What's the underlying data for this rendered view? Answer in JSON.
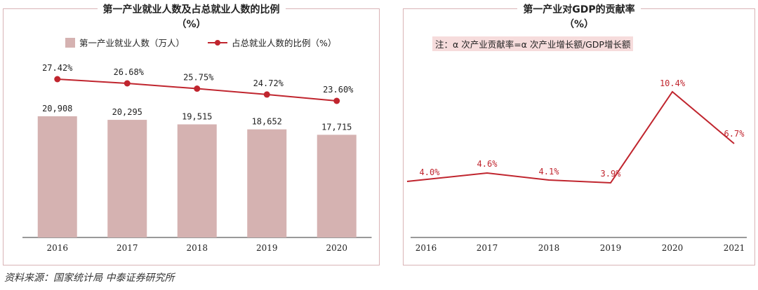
{
  "left_chart": {
    "title": "第一产业就业人数及占总就业人数的比例",
    "subtitle": "（%）",
    "legend_bar": "第一产业就业人数（万人）",
    "legend_line": "占总就业人数的比例（%）",
    "bar_labels": [
      "20,908",
      "20,295",
      "19,515",
      "18,652",
      "17,715"
    ],
    "line_labels": [
      "27.42%",
      "26.68%",
      "25.75%",
      "24.72%",
      "23.60%"
    ]
  },
  "right_chart": {
    "title": "第一产业对GDP的贡献率",
    "subtitle": "（%）",
    "note": "注：α 次产业贡献率=α 次产业增长额/GDP增长额",
    "point_labels": [
      "4.0%",
      "4.6%",
      "4.1%",
      "3.9%",
      "10.4%",
      "6.7%"
    ]
  },
  "chart_data": [
    {
      "type": "bar",
      "title": "第一产业就业人数及占总就业人数的比例",
      "categories": [
        "2016",
        "2017",
        "2018",
        "2019",
        "2020"
      ],
      "series": [
        {
          "name": "第一产业就业人数（万人）",
          "type": "bar",
          "values": [
            20908,
            20295,
            19515,
            18652,
            17715
          ],
          "color": "#d5b2b1"
        },
        {
          "name": "占总就业人数的比例（%）",
          "type": "line",
          "values": [
            27.42,
            26.68,
            25.75,
            24.72,
            23.6
          ],
          "color": "#c0252e"
        }
      ]
    },
    {
      "type": "line",
      "title": "第一产业对GDP的贡献率",
      "categories": [
        "2016",
        "2017",
        "2018",
        "2019",
        "2020",
        "2021"
      ],
      "series": [
        {
          "name": "",
          "values": [
            4.0,
            4.6,
            4.1,
            3.9,
            10.4,
            6.7
          ],
          "color": "#c0252e"
        }
      ]
    }
  ],
  "source": "资料来源：国家统计局 中泰证券研究所"
}
